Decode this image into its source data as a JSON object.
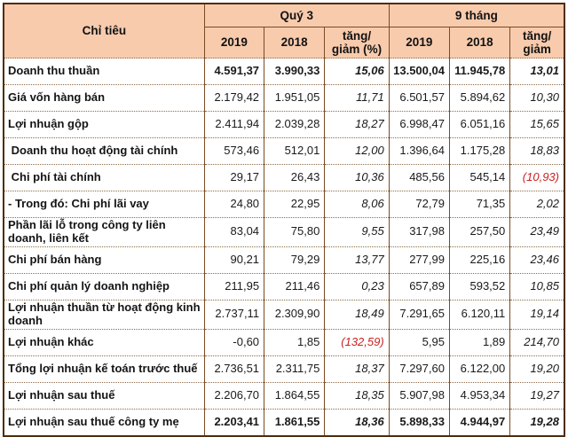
{
  "colors": {
    "header_bg": "#f8cbad",
    "border_outer": "#4e2d10",
    "border_inner": "#7b4b24",
    "negative_red": "#cc2020"
  },
  "chart_data": {
    "type": "table",
    "title": "",
    "criteria_header": "Chỉ tiêu",
    "col_groups": [
      {
        "label": "Quý 3",
        "span": 3
      },
      {
        "label": "9 tháng",
        "span": 3
      }
    ],
    "sub_columns": [
      "2019",
      "2018",
      "tăng/ giảm (%)",
      "2019",
      "2018",
      "tăng/ giảm"
    ],
    "rows": [
      {
        "label": "Doanh thu thuần",
        "values": [
          "4.591,37",
          "3.990,33",
          "15,06",
          "13.500,04",
          "11.945,78",
          "13,01"
        ],
        "bold": true,
        "red": []
      },
      {
        "label": "Giá vốn hàng bán",
        "values": [
          "2.179,42",
          "1.951,05",
          "11,71",
          "6.501,57",
          "5.894,62",
          "10,30"
        ],
        "bold": false,
        "red": []
      },
      {
        "label": "Lợi nhuận gộp",
        "values": [
          "2.411,94",
          "2.039,28",
          "18,27",
          "6.998,47",
          "6.051,16",
          "15,65"
        ],
        "bold": false,
        "red": []
      },
      {
        "label": " Doanh thu hoạt động tài chính",
        "values": [
          "573,46",
          "512,01",
          "12,00",
          "1.396,64",
          "1.175,28",
          "18,83"
        ],
        "bold": false,
        "red": []
      },
      {
        "label": " Chi phí tài chính",
        "values": [
          "29,17",
          "26,43",
          "10,36",
          "485,56",
          "545,14",
          "(10,93)"
        ],
        "bold": false,
        "red": [
          5
        ]
      },
      {
        "label": "- Trong đó: Chi phí lãi vay",
        "values": [
          "24,80",
          "22,95",
          "8,06",
          "72,79",
          "71,35",
          "2,02"
        ],
        "bold": false,
        "red": []
      },
      {
        "label": "Phần lãi lỗ trong công ty liên doanh, liên kết",
        "values": [
          "83,04",
          "75,80",
          "9,55",
          "317,98",
          "257,50",
          "23,49"
        ],
        "bold": false,
        "red": []
      },
      {
        "label": "Chi phí bán hàng",
        "values": [
          "90,21",
          "79,29",
          "13,77",
          "277,99",
          "225,16",
          "23,46"
        ],
        "bold": false,
        "red": []
      },
      {
        "label": "Chi phí quản lý doanh nghiệp",
        "values": [
          "211,95",
          "211,46",
          "0,23",
          "657,89",
          "593,52",
          "10,85"
        ],
        "bold": false,
        "red": []
      },
      {
        "label": "Lợi nhuận thuần từ hoạt động kinh doanh",
        "values": [
          "2.737,11",
          "2.309,90",
          "18,49",
          "7.291,65",
          "6.120,11",
          "19,14"
        ],
        "bold": false,
        "red": []
      },
      {
        "label": "Lợi nhuận khác",
        "values": [
          "-0,60",
          "1,85",
          "(132,59)",
          "5,95",
          "1,89",
          "214,70"
        ],
        "bold": false,
        "red": [
          2
        ]
      },
      {
        "label": "Tổng lợi nhuận kế toán trước thuế",
        "values": [
          "2.736,51",
          "2.311,75",
          "18,37",
          "7.297,60",
          "6.122,00",
          "19,20"
        ],
        "bold": false,
        "red": []
      },
      {
        "label": "Lợi nhuận sau thuế",
        "values": [
          "2.206,70",
          "1.864,55",
          "18,35",
          "5.907,98",
          "4.953,34",
          "19,27"
        ],
        "bold": false,
        "red": []
      },
      {
        "label": "Lợi nhuận sau thuế công ty mẹ",
        "values": [
          "2.203,41",
          "1.861,55",
          "18,36",
          "5.898,33",
          "4.944,97",
          "19,28"
        ],
        "bold": true,
        "red": []
      }
    ]
  }
}
